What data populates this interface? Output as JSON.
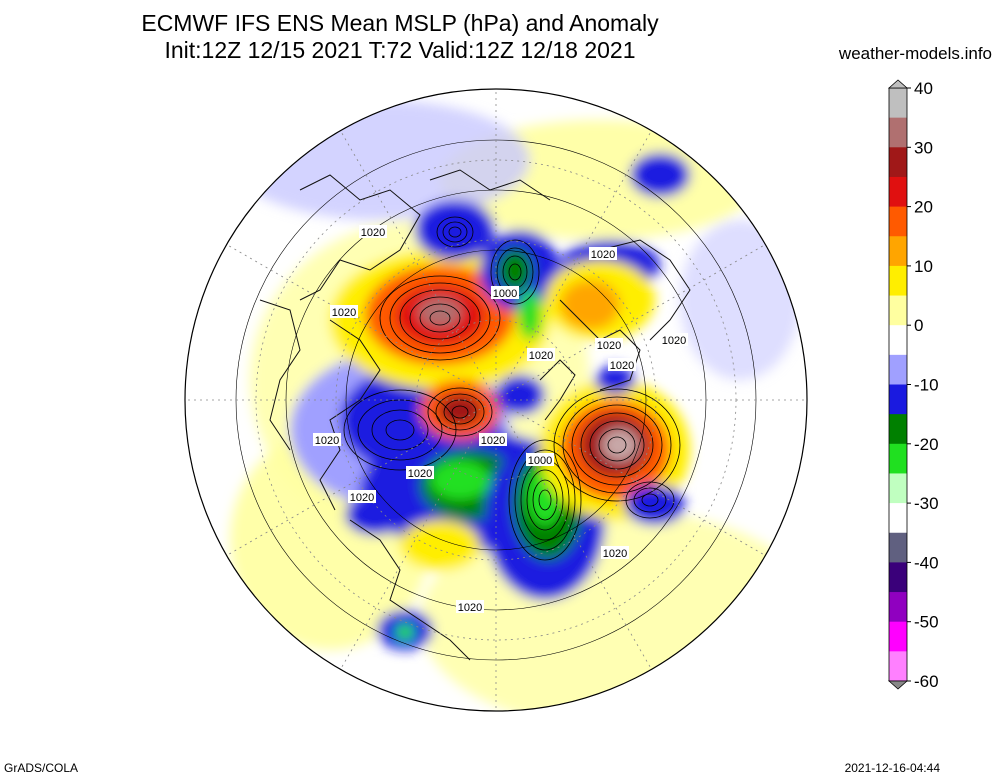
{
  "header": {
    "title_line1": "ECMWF IFS ENS Mean MSLP (hPa) and Anomaly",
    "title_line2": "Init:12Z 12/15 2021  T:72 Valid:12Z 12/18 2021",
    "site": "weather-models.info"
  },
  "footer": {
    "left": "GrADS/COLA",
    "right": "2021-12-16-04:44"
  },
  "colorbar": {
    "labels": [
      "40",
      "30",
      "20",
      "10",
      "0",
      "-10",
      "-20",
      "-30",
      "-40",
      "-50",
      "-60"
    ],
    "colors": {
      "40": "#bfbfbf",
      "35": "#b07070",
      "30": "#a01818",
      "25": "#e01010",
      "20": "#ff5a00",
      "15": "#ffa500",
      "10": "#ffee00",
      "5": "#ffffa0",
      "0": "#ffffff",
      "-5": "#a0a0ff",
      "-10": "#1a1ae0",
      "-15": "#008000",
      "-20": "#20e020",
      "-25": "#c0ffc0",
      "-30": "#ffffff",
      "-35": "#606080",
      "-40": "#3a007a",
      "-45": "#9000c0",
      "-50": "#ff00ff",
      "-55": "#ff80ff",
      "-60": "#888888"
    }
  },
  "map": {
    "contour_labels": [
      "1020",
      "1020",
      "1020",
      "1020",
      "1020",
      "1020",
      "1020",
      "1020",
      "1020",
      "1020",
      "1020",
      "1020",
      "1020",
      "1000",
      "1000"
    ],
    "unit": "hPa"
  }
}
